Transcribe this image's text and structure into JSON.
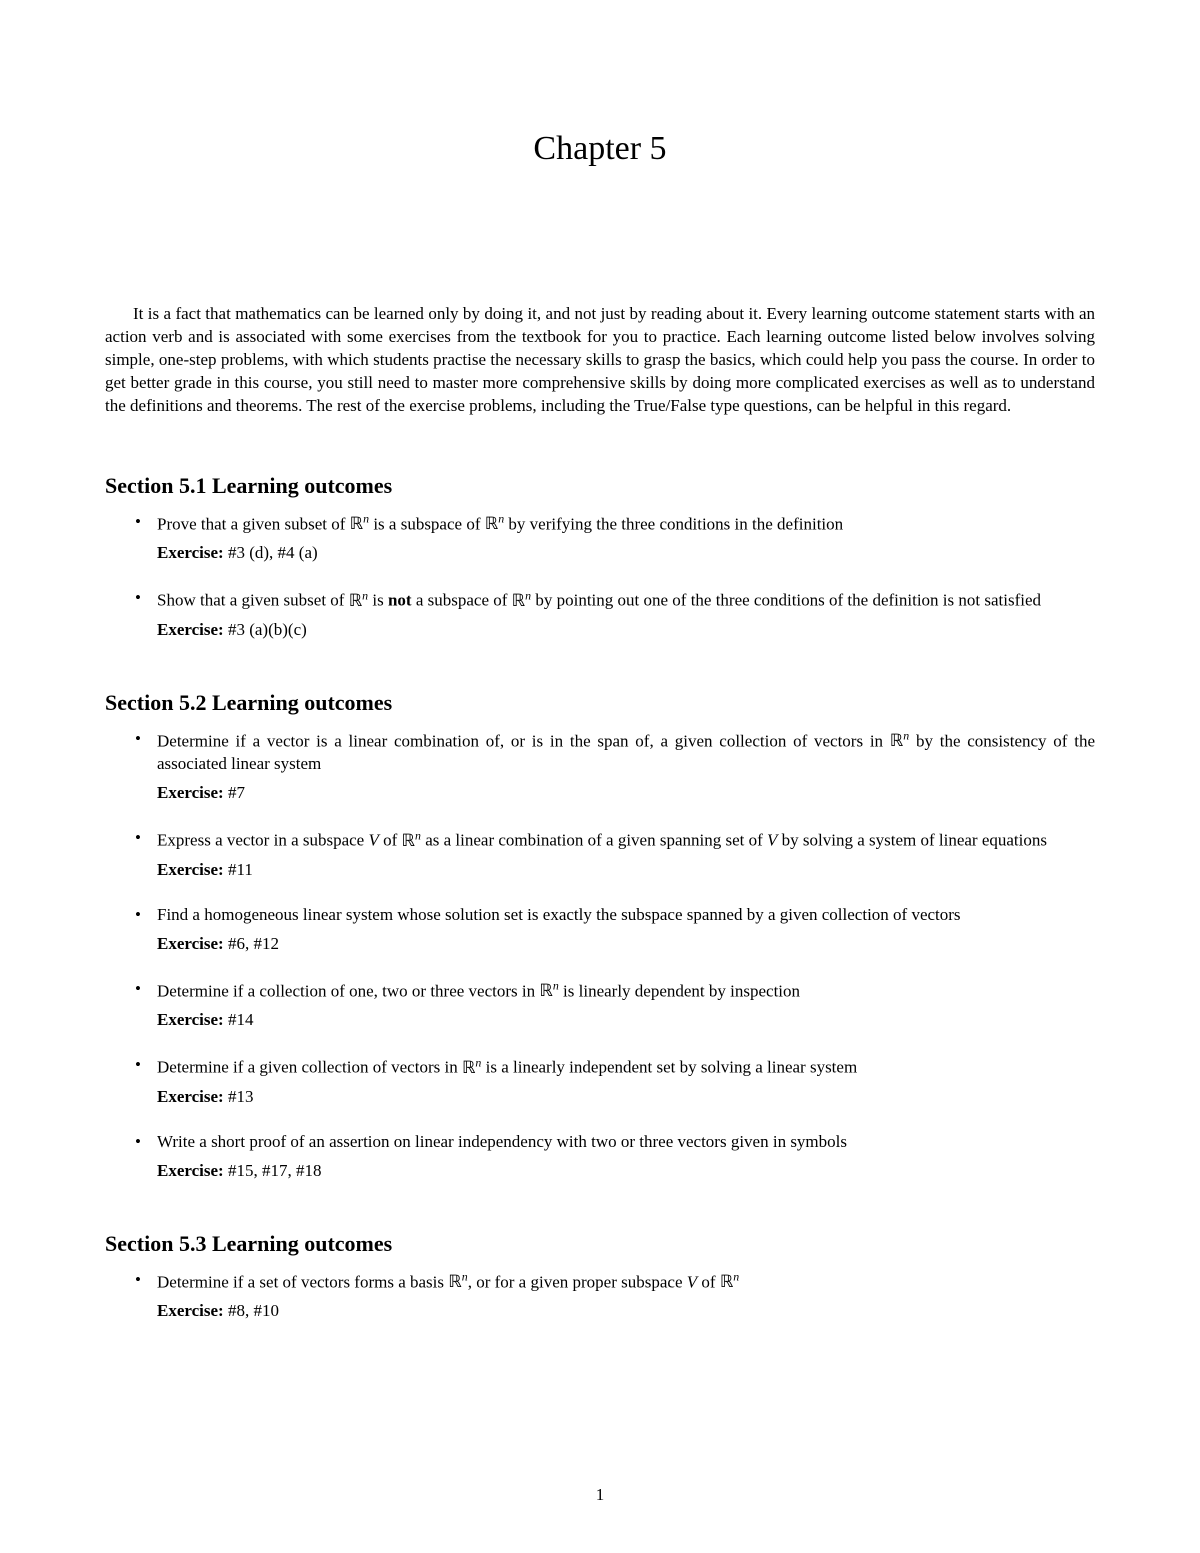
{
  "chapter": {
    "title": "Chapter 5"
  },
  "intro": {
    "text": "It is a fact that mathematics can be learned only by doing it, and not just by reading about it. Every learning outcome statement starts with an action verb and is associated with some exercises from the textbook for you to practice. Each learning outcome listed below involves solving simple, one-step problems, with which students practise the necessary skills to grasp the basics, which could help you pass the course. In order to get better grade in this course, you still need to master more comprehensive skills by doing more complicated exercises as well as to understand the definitions and theorems. The rest of the exercise problems, including the True/False type questions, can be helpful in this regard."
  },
  "sections": [
    {
      "title": "Section 5.1 Learning outcomes",
      "items": [
        {
          "pre": "Prove that a given subset of ",
          "mid1": " is a subspace of ",
          "post": " by verifying the three conditions in the definition",
          "exerciseLabel": "Exercise:",
          "exerciseText": " #3 (d), #4 (a)"
        },
        {
          "pre": "Show that a given subset of ",
          "mid1": " is ",
          "boldWord": "not",
          "mid2": " a subspace of ",
          "post": " by pointing out one of the three conditions of the definition is not satisfied",
          "exerciseLabel": "Exercise:",
          "exerciseText": " #3 (a)(b)(c)"
        }
      ]
    },
    {
      "title": "Section 5.2 Learning outcomes",
      "items": [
        {
          "pre": "Determine if a vector is a linear combination of, or is in the span of, a given collection of vectors in ",
          "post": " by the consistency of the associated linear system",
          "exerciseLabel": "Exercise:",
          "exerciseText": " #7"
        },
        {
          "pre": "Express a vector in a subspace ",
          "vWord1": "V",
          "mid1": " of ",
          "mid2": " as a linear combination of a given spanning set of ",
          "vWord2": "V",
          "post": " by solving a system of linear equations",
          "exerciseLabel": "Exercise:",
          "exerciseText": " #11"
        },
        {
          "full": "Find a homogeneous linear system whose solution set is exactly the subspace spanned by a given collection of vectors",
          "exerciseLabel": "Exercise:",
          "exerciseText": " #6, #12"
        },
        {
          "pre": "Determine if a collection of one, two or three vectors in ",
          "post": " is linearly dependent by inspection",
          "exerciseLabel": "Exercise:",
          "exerciseText": " #14"
        },
        {
          "pre": "Determine if a given collection of vectors in ",
          "post": " is a linearly independent set by solving a linear system",
          "exerciseLabel": "Exercise:",
          "exerciseText": " #13"
        },
        {
          "full": "Write a short proof of an assertion on linear independency with two or three vectors given in symbols",
          "exerciseLabel": "Exercise:",
          "exerciseText": " #15, #17, #18"
        }
      ]
    },
    {
      "title": "Section 5.3 Learning outcomes",
      "items": [
        {
          "pre": "Determine if a set of vectors forms a basis ",
          "mid1": ", or for a given proper subspace ",
          "vWord1": "V",
          "mid2": " of ",
          "exerciseLabel": "Exercise:",
          "exerciseText": " #8, #10"
        }
      ]
    }
  ],
  "pageNumber": "1",
  "rn": "ℝ",
  "rnSup": "n"
}
